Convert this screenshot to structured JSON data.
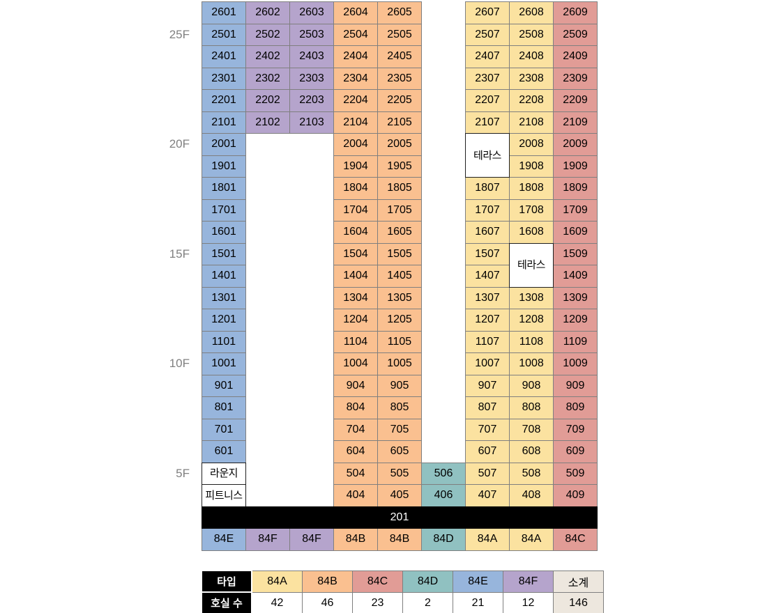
{
  "palette": {
    "84A": "#FBE2A0",
    "84B": "#FAC090",
    "84C": "#E19C96",
    "84D": "#90C1C1",
    "84E": "#97B5DC",
    "84F": "#B5A4CC",
    "plain": "#FFFFFF",
    "subtotal_bg": "#EDE7DE",
    "header_bg": "#000000",
    "header_text": "#FFFFFF",
    "floor_label_color": "#808080"
  },
  "grid": {
    "bar_label": "201",
    "floor_labels": [
      {
        "row": 2,
        "label": "25F"
      },
      {
        "row": 7,
        "label": "20F"
      },
      {
        "row": 12,
        "label": "15F"
      },
      {
        "row": 17,
        "label": "10F"
      },
      {
        "row": 22,
        "label": "5F"
      }
    ],
    "rows": [
      {
        "r": 1,
        "cells": [
          {
            "c": 1,
            "t": "2601",
            "k": "84E"
          },
          {
            "c": 2,
            "t": "2602",
            "k": "84F"
          },
          {
            "c": 3,
            "t": "2603",
            "k": "84F"
          },
          {
            "c": 4,
            "t": "2604",
            "k": "84B"
          },
          {
            "c": 5,
            "t": "2605",
            "k": "84B"
          },
          {
            "c": 7,
            "t": "2607",
            "k": "84A"
          },
          {
            "c": 8,
            "t": "2608",
            "k": "84A"
          },
          {
            "c": 9,
            "t": "2609",
            "k": "84C"
          }
        ]
      },
      {
        "r": 2,
        "cells": [
          {
            "c": 1,
            "t": "2501",
            "k": "84E"
          },
          {
            "c": 2,
            "t": "2502",
            "k": "84F"
          },
          {
            "c": 3,
            "t": "2503",
            "k": "84F"
          },
          {
            "c": 4,
            "t": "2504",
            "k": "84B"
          },
          {
            "c": 5,
            "t": "2505",
            "k": "84B"
          },
          {
            "c": 7,
            "t": "2507",
            "k": "84A"
          },
          {
            "c": 8,
            "t": "2508",
            "k": "84A"
          },
          {
            "c": 9,
            "t": "2509",
            "k": "84C"
          }
        ]
      },
      {
        "r": 3,
        "cells": [
          {
            "c": 1,
            "t": "2401",
            "k": "84E"
          },
          {
            "c": 2,
            "t": "2402",
            "k": "84F"
          },
          {
            "c": 3,
            "t": "2403",
            "k": "84F"
          },
          {
            "c": 4,
            "t": "2404",
            "k": "84B"
          },
          {
            "c": 5,
            "t": "2405",
            "k": "84B"
          },
          {
            "c": 7,
            "t": "2407",
            "k": "84A"
          },
          {
            "c": 8,
            "t": "2408",
            "k": "84A"
          },
          {
            "c": 9,
            "t": "2409",
            "k": "84C"
          }
        ]
      },
      {
        "r": 4,
        "cells": [
          {
            "c": 1,
            "t": "2301",
            "k": "84E"
          },
          {
            "c": 2,
            "t": "2302",
            "k": "84F"
          },
          {
            "c": 3,
            "t": "2303",
            "k": "84F"
          },
          {
            "c": 4,
            "t": "2304",
            "k": "84B"
          },
          {
            "c": 5,
            "t": "2305",
            "k": "84B"
          },
          {
            "c": 7,
            "t": "2307",
            "k": "84A"
          },
          {
            "c": 8,
            "t": "2308",
            "k": "84A"
          },
          {
            "c": 9,
            "t": "2309",
            "k": "84C"
          }
        ]
      },
      {
        "r": 5,
        "cells": [
          {
            "c": 1,
            "t": "2201",
            "k": "84E"
          },
          {
            "c": 2,
            "t": "2202",
            "k": "84F"
          },
          {
            "c": 3,
            "t": "2203",
            "k": "84F"
          },
          {
            "c": 4,
            "t": "2204",
            "k": "84B"
          },
          {
            "c": 5,
            "t": "2205",
            "k": "84B"
          },
          {
            "c": 7,
            "t": "2207",
            "k": "84A"
          },
          {
            "c": 8,
            "t": "2208",
            "k": "84A"
          },
          {
            "c": 9,
            "t": "2209",
            "k": "84C"
          }
        ]
      },
      {
        "r": 6,
        "cells": [
          {
            "c": 1,
            "t": "2101",
            "k": "84E"
          },
          {
            "c": 2,
            "t": "2102",
            "k": "84F"
          },
          {
            "c": 3,
            "t": "2103",
            "k": "84F"
          },
          {
            "c": 4,
            "t": "2104",
            "k": "84B"
          },
          {
            "c": 5,
            "t": "2105",
            "k": "84B"
          },
          {
            "c": 7,
            "t": "2107",
            "k": "84A"
          },
          {
            "c": 8,
            "t": "2108",
            "k": "84A"
          },
          {
            "c": 9,
            "t": "2109",
            "k": "84C"
          }
        ]
      },
      {
        "r": 7,
        "cells": [
          {
            "c": 1,
            "t": "2001",
            "k": "84E"
          },
          {
            "c": 4,
            "t": "2004",
            "k": "84B"
          },
          {
            "c": 5,
            "t": "2005",
            "k": "84B"
          },
          {
            "c": 7,
            "t": "테라스",
            "k": "plain",
            "rs": 2
          },
          {
            "c": 8,
            "t": "2008",
            "k": "84A"
          },
          {
            "c": 9,
            "t": "2009",
            "k": "84C"
          }
        ]
      },
      {
        "r": 8,
        "cells": [
          {
            "c": 1,
            "t": "1901",
            "k": "84E"
          },
          {
            "c": 4,
            "t": "1904",
            "k": "84B"
          },
          {
            "c": 5,
            "t": "1905",
            "k": "84B"
          },
          {
            "c": 8,
            "t": "1908",
            "k": "84A"
          },
          {
            "c": 9,
            "t": "1909",
            "k": "84C"
          }
        ]
      },
      {
        "r": 9,
        "cells": [
          {
            "c": 1,
            "t": "1801",
            "k": "84E"
          },
          {
            "c": 4,
            "t": "1804",
            "k": "84B"
          },
          {
            "c": 5,
            "t": "1805",
            "k": "84B"
          },
          {
            "c": 7,
            "t": "1807",
            "k": "84A"
          },
          {
            "c": 8,
            "t": "1808",
            "k": "84A"
          },
          {
            "c": 9,
            "t": "1809",
            "k": "84C"
          }
        ]
      },
      {
        "r": 10,
        "cells": [
          {
            "c": 1,
            "t": "1701",
            "k": "84E"
          },
          {
            "c": 4,
            "t": "1704",
            "k": "84B"
          },
          {
            "c": 5,
            "t": "1705",
            "k": "84B"
          },
          {
            "c": 7,
            "t": "1707",
            "k": "84A"
          },
          {
            "c": 8,
            "t": "1708",
            "k": "84A"
          },
          {
            "c": 9,
            "t": "1709",
            "k": "84C"
          }
        ]
      },
      {
        "r": 11,
        "cells": [
          {
            "c": 1,
            "t": "1601",
            "k": "84E"
          },
          {
            "c": 4,
            "t": "1604",
            "k": "84B"
          },
          {
            "c": 5,
            "t": "1605",
            "k": "84B"
          },
          {
            "c": 7,
            "t": "1607",
            "k": "84A"
          },
          {
            "c": 8,
            "t": "1608",
            "k": "84A"
          },
          {
            "c": 9,
            "t": "1609",
            "k": "84C"
          }
        ]
      },
      {
        "r": 12,
        "cells": [
          {
            "c": 1,
            "t": "1501",
            "k": "84E"
          },
          {
            "c": 4,
            "t": "1504",
            "k": "84B"
          },
          {
            "c": 5,
            "t": "1505",
            "k": "84B"
          },
          {
            "c": 7,
            "t": "1507",
            "k": "84A"
          },
          {
            "c": 8,
            "t": "테라스",
            "k": "plain",
            "rs": 2
          },
          {
            "c": 9,
            "t": "1509",
            "k": "84C"
          }
        ]
      },
      {
        "r": 13,
        "cells": [
          {
            "c": 1,
            "t": "1401",
            "k": "84E"
          },
          {
            "c": 4,
            "t": "1404",
            "k": "84B"
          },
          {
            "c": 5,
            "t": "1405",
            "k": "84B"
          },
          {
            "c": 7,
            "t": "1407",
            "k": "84A"
          },
          {
            "c": 9,
            "t": "1409",
            "k": "84C"
          }
        ]
      },
      {
        "r": 14,
        "cells": [
          {
            "c": 1,
            "t": "1301",
            "k": "84E"
          },
          {
            "c": 4,
            "t": "1304",
            "k": "84B"
          },
          {
            "c": 5,
            "t": "1305",
            "k": "84B"
          },
          {
            "c": 7,
            "t": "1307",
            "k": "84A"
          },
          {
            "c": 8,
            "t": "1308",
            "k": "84A"
          },
          {
            "c": 9,
            "t": "1309",
            "k": "84C"
          }
        ]
      },
      {
        "r": 15,
        "cells": [
          {
            "c": 1,
            "t": "1201",
            "k": "84E"
          },
          {
            "c": 4,
            "t": "1204",
            "k": "84B"
          },
          {
            "c": 5,
            "t": "1205",
            "k": "84B"
          },
          {
            "c": 7,
            "t": "1207",
            "k": "84A"
          },
          {
            "c": 8,
            "t": "1208",
            "k": "84A"
          },
          {
            "c": 9,
            "t": "1209",
            "k": "84C"
          }
        ]
      },
      {
        "r": 16,
        "cells": [
          {
            "c": 1,
            "t": "1101",
            "k": "84E"
          },
          {
            "c": 4,
            "t": "1104",
            "k": "84B"
          },
          {
            "c": 5,
            "t": "1105",
            "k": "84B"
          },
          {
            "c": 7,
            "t": "1107",
            "k": "84A"
          },
          {
            "c": 8,
            "t": "1108",
            "k": "84A"
          },
          {
            "c": 9,
            "t": "1109",
            "k": "84C"
          }
        ]
      },
      {
        "r": 17,
        "cells": [
          {
            "c": 1,
            "t": "1001",
            "k": "84E"
          },
          {
            "c": 4,
            "t": "1004",
            "k": "84B"
          },
          {
            "c": 5,
            "t": "1005",
            "k": "84B"
          },
          {
            "c": 7,
            "t": "1007",
            "k": "84A"
          },
          {
            "c": 8,
            "t": "1008",
            "k": "84A"
          },
          {
            "c": 9,
            "t": "1009",
            "k": "84C"
          }
        ]
      },
      {
        "r": 18,
        "cells": [
          {
            "c": 1,
            "t": "901",
            "k": "84E"
          },
          {
            "c": 4,
            "t": "904",
            "k": "84B"
          },
          {
            "c": 5,
            "t": "905",
            "k": "84B"
          },
          {
            "c": 7,
            "t": "907",
            "k": "84A"
          },
          {
            "c": 8,
            "t": "908",
            "k": "84A"
          },
          {
            "c": 9,
            "t": "909",
            "k": "84C"
          }
        ]
      },
      {
        "r": 19,
        "cells": [
          {
            "c": 1,
            "t": "801",
            "k": "84E"
          },
          {
            "c": 4,
            "t": "804",
            "k": "84B"
          },
          {
            "c": 5,
            "t": "805",
            "k": "84B"
          },
          {
            "c": 7,
            "t": "807",
            "k": "84A"
          },
          {
            "c": 8,
            "t": "808",
            "k": "84A"
          },
          {
            "c": 9,
            "t": "809",
            "k": "84C"
          }
        ]
      },
      {
        "r": 20,
        "cells": [
          {
            "c": 1,
            "t": "701",
            "k": "84E"
          },
          {
            "c": 4,
            "t": "704",
            "k": "84B"
          },
          {
            "c": 5,
            "t": "705",
            "k": "84B"
          },
          {
            "c": 7,
            "t": "707",
            "k": "84A"
          },
          {
            "c": 8,
            "t": "708",
            "k": "84A"
          },
          {
            "c": 9,
            "t": "709",
            "k": "84C"
          }
        ]
      },
      {
        "r": 21,
        "cells": [
          {
            "c": 1,
            "t": "601",
            "k": "84E"
          },
          {
            "c": 4,
            "t": "604",
            "k": "84B"
          },
          {
            "c": 5,
            "t": "605",
            "k": "84B"
          },
          {
            "c": 7,
            "t": "607",
            "k": "84A"
          },
          {
            "c": 8,
            "t": "608",
            "k": "84A"
          },
          {
            "c": 9,
            "t": "609",
            "k": "84C"
          }
        ]
      },
      {
        "r": 22,
        "cells": [
          {
            "c": 1,
            "t": "라운지",
            "k": "plain"
          },
          {
            "c": 4,
            "t": "504",
            "k": "84B"
          },
          {
            "c": 5,
            "t": "505",
            "k": "84B"
          },
          {
            "c": 6,
            "t": "506",
            "k": "84D"
          },
          {
            "c": 7,
            "t": "507",
            "k": "84A"
          },
          {
            "c": 8,
            "t": "508",
            "k": "84A"
          },
          {
            "c": 9,
            "t": "509",
            "k": "84C"
          }
        ]
      },
      {
        "r": 23,
        "cells": [
          {
            "c": 1,
            "t": "피트니스",
            "k": "plain"
          },
          {
            "c": 4,
            "t": "404",
            "k": "84B"
          },
          {
            "c": 5,
            "t": "405",
            "k": "84B"
          },
          {
            "c": 6,
            "t": "406",
            "k": "84D"
          },
          {
            "c": 7,
            "t": "407",
            "k": "84A"
          },
          {
            "c": 8,
            "t": "408",
            "k": "84A"
          },
          {
            "c": 9,
            "t": "409",
            "k": "84C"
          }
        ]
      }
    ],
    "type_row": [
      {
        "c": 1,
        "t": "84E",
        "k": "84E"
      },
      {
        "c": 2,
        "t": "84F",
        "k": "84F"
      },
      {
        "c": 3,
        "t": "84F",
        "k": "84F"
      },
      {
        "c": 4,
        "t": "84B",
        "k": "84B"
      },
      {
        "c": 5,
        "t": "84B",
        "k": "84B"
      },
      {
        "c": 6,
        "t": "84D",
        "k": "84D"
      },
      {
        "c": 7,
        "t": "84A",
        "k": "84A"
      },
      {
        "c": 8,
        "t": "84A",
        "k": "84A"
      },
      {
        "c": 9,
        "t": "84C",
        "k": "84C"
      }
    ]
  },
  "summary": {
    "type_label": "타입",
    "count_label": "호실 수",
    "subtotal_label": "소계",
    "subtotal_count": "146",
    "entries": [
      {
        "type": "84A",
        "count": "42"
      },
      {
        "type": "84B",
        "count": "46"
      },
      {
        "type": "84C",
        "count": "23"
      },
      {
        "type": "84D",
        "count": "2"
      },
      {
        "type": "84E",
        "count": "21"
      },
      {
        "type": "84F",
        "count": "12"
      }
    ]
  }
}
